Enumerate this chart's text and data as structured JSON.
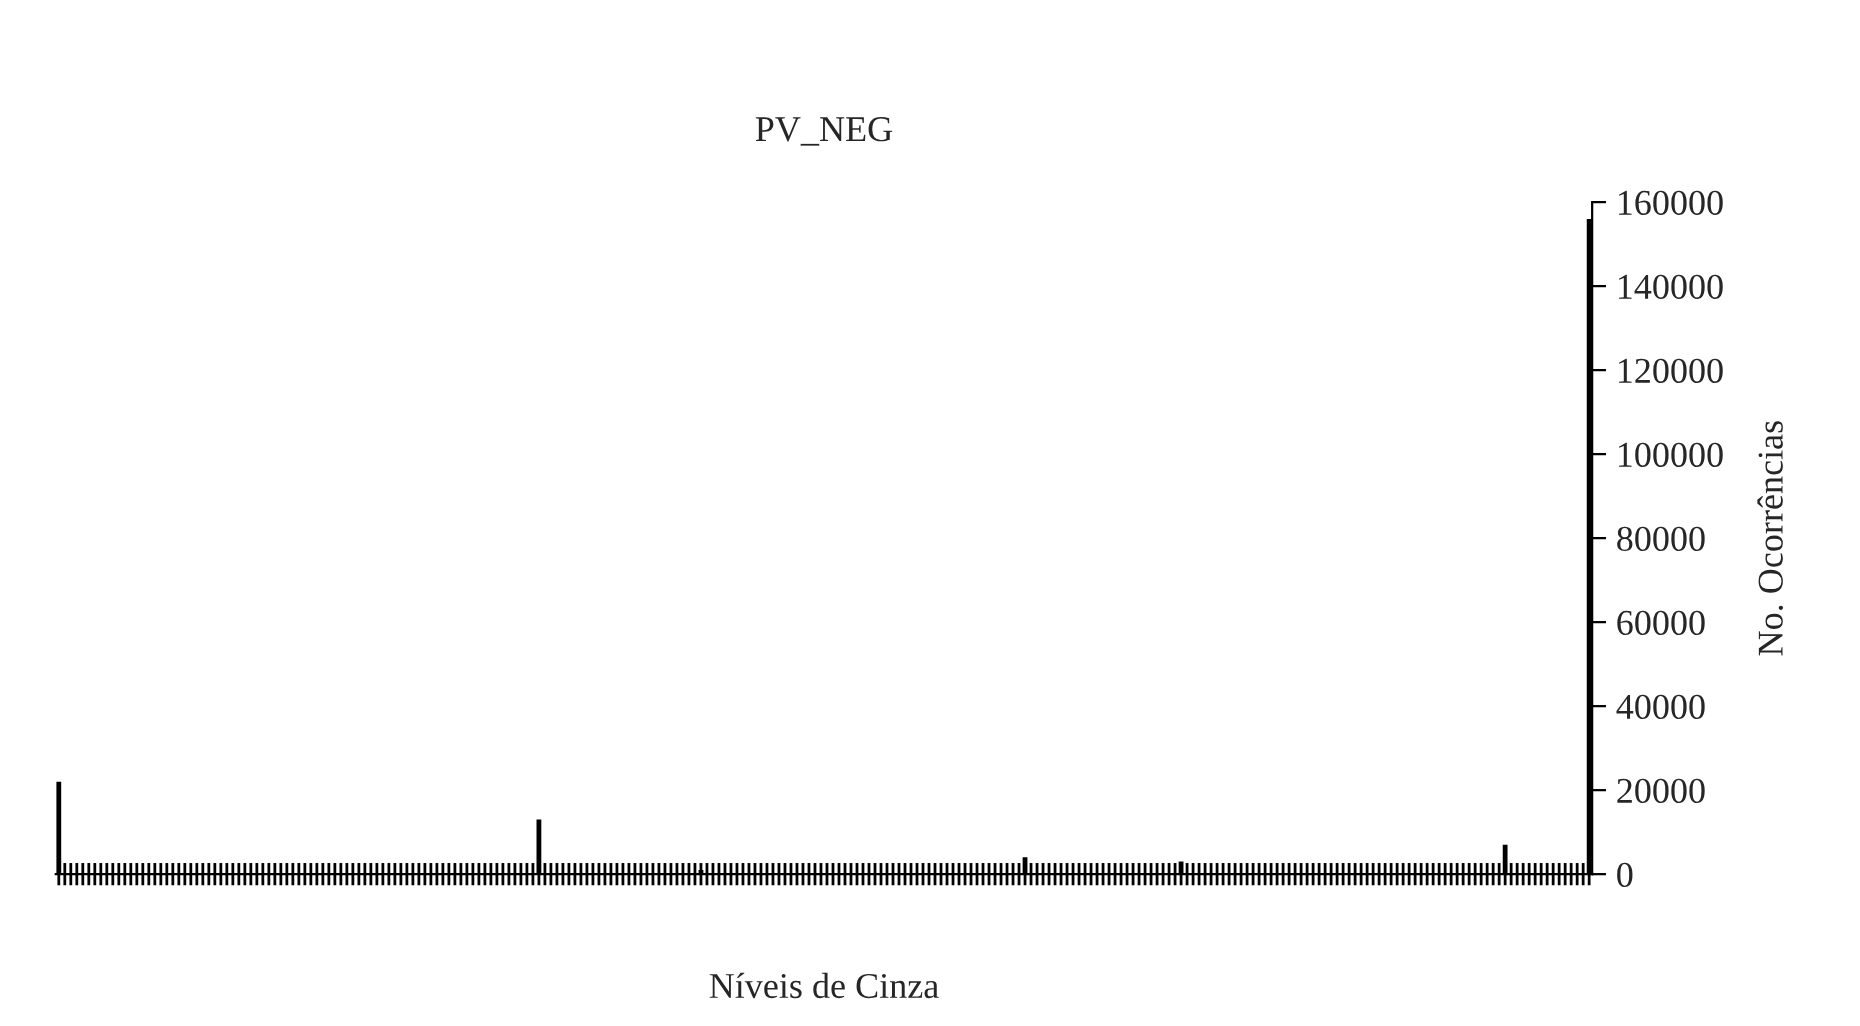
{
  "chart_data": {
    "type": "bar",
    "title": "PV_NEG",
    "xlabel": "Níveis de Cinza",
    "ylabel": "No. Ocorrências",
    "categories": [
      null,
      null,
      null,
      null,
      null,
      null,
      null,
      null,
      null,
      null,
      null,
      null,
      null,
      null,
      null,
      null,
      null,
      null,
      null,
      null,
      null,
      null,
      null,
      null,
      null,
      null,
      null,
      null,
      null,
      null,
      null,
      null,
      null,
      null,
      null,
      null,
      null,
      null,
      null,
      null,
      null,
      null,
      null,
      null,
      null,
      null,
      null,
      null,
      null,
      null,
      null,
      null,
      null,
      null,
      null,
      null,
      null,
      null,
      null,
      null,
      null,
      null,
      null,
      null,
      null,
      null,
      null,
      null,
      null,
      null,
      null,
      null,
      null,
      null,
      null,
      null,
      null,
      null,
      null,
      null,
      null,
      null,
      null,
      null,
      null,
      null,
      null,
      null,
      null,
      null,
      null,
      null,
      null,
      null,
      null,
      null,
      null,
      null,
      null,
      null,
      null,
      null,
      null,
      null,
      null,
      null,
      null,
      null,
      null,
      null,
      null,
      null,
      null,
      null,
      null,
      null,
      null,
      null,
      null,
      null,
      null,
      null,
      null,
      null,
      null,
      null,
      null,
      null,
      null,
      null,
      null,
      null,
      null,
      null,
      null,
      null,
      null,
      null,
      null,
      null,
      null,
      null,
      null,
      null,
      null,
      null,
      null,
      null,
      null,
      null,
      null,
      null,
      null,
      null,
      null,
      null,
      null,
      null,
      null,
      null,
      null,
      null,
      null,
      null,
      null,
      null,
      null,
      null,
      null,
      null,
      null,
      null,
      null,
      null,
      null,
      null,
      null,
      null,
      null,
      null,
      null,
      null,
      null,
      null,
      null,
      null,
      null,
      null,
      null,
      null,
      null,
      null,
      null,
      null,
      null,
      null,
      null,
      null,
      null,
      null,
      null,
      null,
      null,
      null,
      null,
      null,
      null,
      null,
      null,
      null,
      null,
      null,
      null,
      null,
      null,
      null,
      null,
      null,
      null,
      null,
      null,
      null,
      null,
      null,
      null,
      null,
      null,
      null,
      null,
      null,
      null,
      null,
      null,
      null,
      null,
      null,
      null,
      null,
      null,
      null,
      null,
      null,
      null,
      null,
      null,
      null,
      null,
      null,
      null,
      null,
      null,
      null,
      null,
      null,
      null,
      null
    ],
    "values": [
      22000,
      0,
      0,
      0,
      0,
      0,
      0,
      0,
      0,
      0,
      0,
      0,
      0,
      0,
      0,
      0,
      0,
      0,
      0,
      0,
      0,
      0,
      0,
      0,
      0,
      0,
      0,
      0,
      0,
      0,
      0,
      0,
      0,
      0,
      0,
      0,
      0,
      0,
      0,
      0,
      0,
      0,
      0,
      0,
      0,
      0,
      0,
      0,
      0,
      0,
      0,
      0,
      0,
      0,
      0,
      0,
      0,
      0,
      0,
      0,
      0,
      0,
      0,
      0,
      0,
      0,
      0,
      0,
      0,
      0,
      0,
      0,
      0,
      0,
      0,
      0,
      0,
      0,
      0,
      0,
      13000,
      0,
      0,
      0,
      0,
      0,
      0,
      0,
      0,
      0,
      0,
      0,
      0,
      0,
      0,
      0,
      0,
      0,
      0,
      0,
      0,
      0,
      0,
      0,
      0,
      0,
      0,
      1000,
      0,
      0,
      0,
      0,
      0,
      0,
      0,
      0,
      0,
      0,
      0,
      0,
      0,
      0,
      0,
      0,
      0,
      0,
      0,
      0,
      0,
      0,
      0,
      0,
      0,
      0,
      0,
      0,
      0,
      0,
      0,
      0,
      0,
      0,
      0,
      0,
      0,
      0,
      0,
      0,
      0,
      0,
      0,
      0,
      0,
      0,
      0,
      0,
      0,
      0,
      0,
      0,
      0,
      4000,
      0,
      0,
      0,
      0,
      0,
      0,
      0,
      0,
      0,
      0,
      0,
      0,
      0,
      0,
      0,
      0,
      0,
      0,
      0,
      0,
      0,
      0,
      0,
      0,
      0,
      3000,
      0,
      0,
      0,
      0,
      0,
      0,
      0,
      0,
      0,
      0,
      0,
      0,
      0,
      0,
      0,
      0,
      0,
      0,
      0,
      0,
      0,
      0,
      0,
      0,
      0,
      0,
      0,
      0,
      0,
      0,
      0,
      0,
      0,
      0,
      0,
      0,
      0,
      0,
      0,
      0,
      0,
      0,
      0,
      0,
      0,
      0,
      0,
      0,
      0,
      0,
      0,
      0,
      0,
      7000,
      0,
      0,
      0,
      0,
      0,
      0,
      0,
      0,
      0,
      0,
      0,
      0,
      0,
      156000
    ],
    "color": "#000000",
    "ylim": [
      0,
      160000
    ],
    "yticks": [
      0,
      20000,
      40000,
      60000,
      80000,
      100000,
      120000,
      140000,
      160000
    ],
    "grid": false,
    "legend": false
  }
}
